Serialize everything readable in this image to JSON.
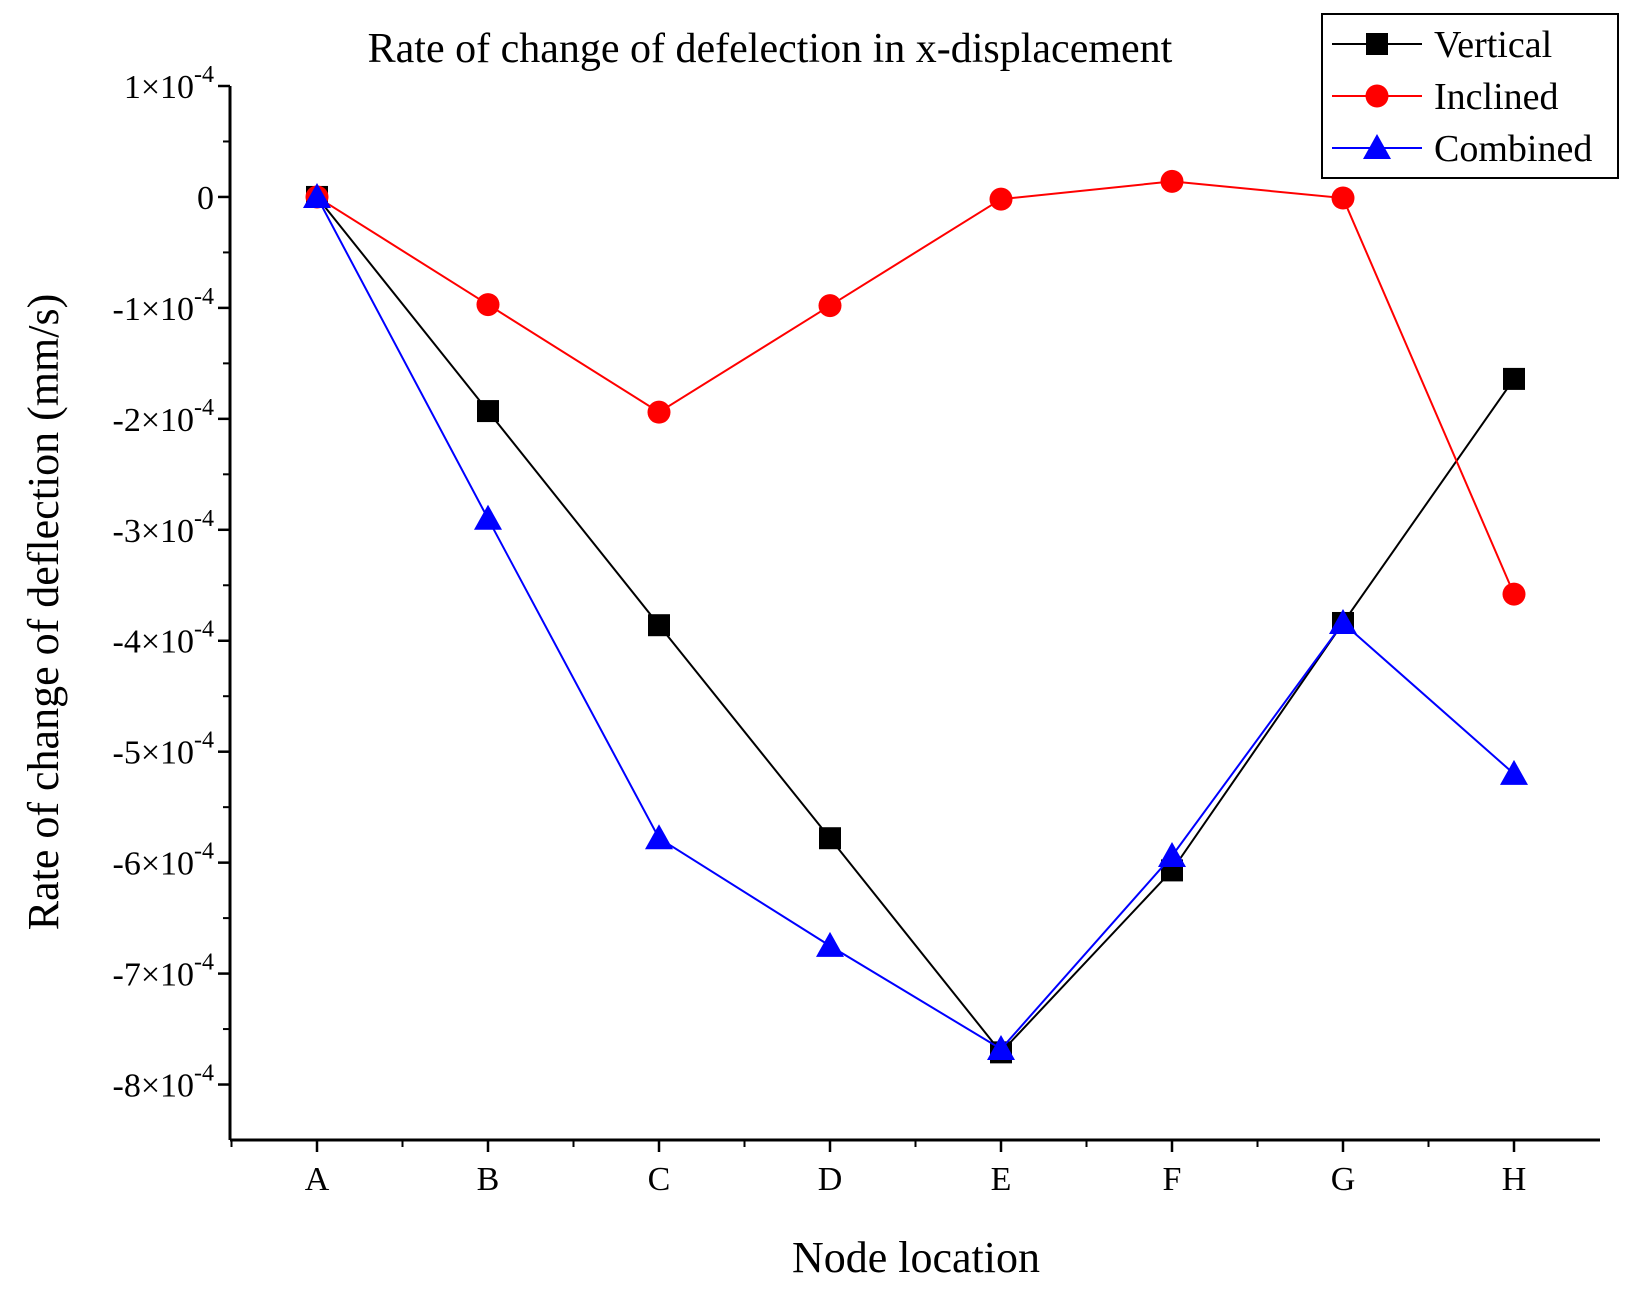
{
  "chart_data": {
    "type": "line",
    "title": "Rate of change of defelection in x-displacement",
    "xlabel": "Node location",
    "ylabel": "Rate of change of deflection (mm/s)",
    "categories": [
      "A",
      "B",
      "C",
      "D",
      "E",
      "F",
      "G",
      "H"
    ],
    "ylim": [
      -0.00085,
      0.0001
    ],
    "yticks": [
      {
        "value": 0.0001,
        "mantissa": "1",
        "exp": "-4"
      },
      {
        "value": 0,
        "mantissa": "0",
        "exp": ""
      },
      {
        "value": -0.0001,
        "mantissa": "-1",
        "exp": "-4"
      },
      {
        "value": -0.0002,
        "mantissa": "-2",
        "exp": "-4"
      },
      {
        "value": -0.0003,
        "mantissa": "-3",
        "exp": "-4"
      },
      {
        "value": -0.0004,
        "mantissa": "-4",
        "exp": "-4"
      },
      {
        "value": -0.0005,
        "mantissa": "-5",
        "exp": "-4"
      },
      {
        "value": -0.0006,
        "mantissa": "-6",
        "exp": "-4"
      },
      {
        "value": -0.0007,
        "mantissa": "-7",
        "exp": "-4"
      },
      {
        "value": -0.0008,
        "mantissa": "-8",
        "exp": "-4"
      }
    ],
    "series": [
      {
        "name": "Vertical",
        "color": "#000000",
        "marker": "square",
        "values": [
          0,
          -0.000193,
          -0.000386,
          -0.000578,
          -0.000771,
          -0.000607,
          -0.000384,
          -0.000164
        ]
      },
      {
        "name": "Inclined",
        "color": "#ff0000",
        "marker": "circle",
        "values": [
          0,
          -9.7e-05,
          -0.000194,
          -9.8e-05,
          -2e-06,
          1.4e-05,
          -1e-06,
          -0.000358
        ]
      },
      {
        "name": "Combined",
        "color": "#0000ff",
        "marker": "triangle",
        "values": [
          0,
          -0.00029,
          -0.000578,
          -0.000675,
          -0.000768,
          -0.000594,
          -0.000384,
          -0.00052
        ]
      }
    ],
    "legend": "top-right",
    "grid": false
  }
}
